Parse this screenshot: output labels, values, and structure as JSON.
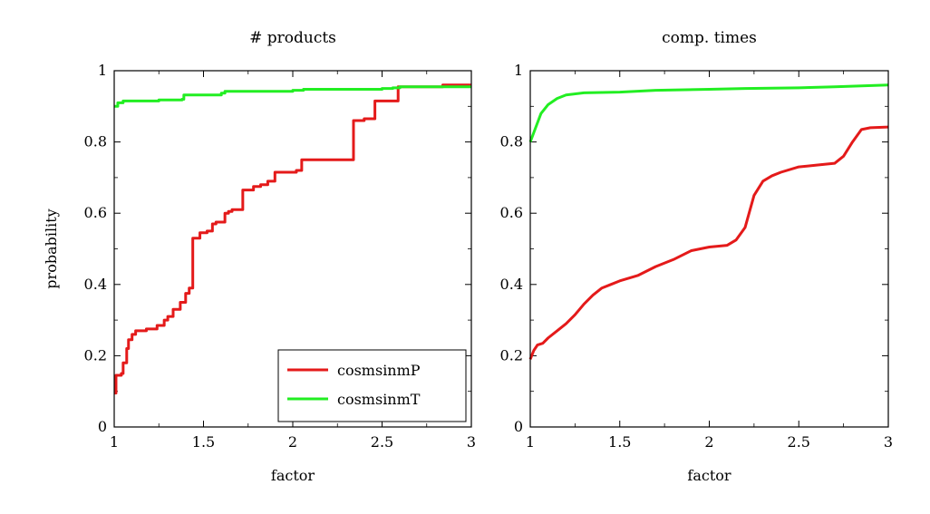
{
  "chart_data": [
    {
      "type": "line",
      "title": "# products",
      "xlabel": "factor",
      "ylabel": "probability",
      "xlim": [
        1,
        3
      ],
      "ylim": [
        0,
        1
      ],
      "xticks": [
        "1",
        "1.5",
        "2",
        "2.5",
        "3"
      ],
      "yticks": [
        "0",
        "0.2",
        "0.4",
        "0.6",
        "0.8",
        "1"
      ],
      "legend": {
        "position": "bottom-right",
        "show": true
      },
      "series": [
        {
          "name": "cosmsinmP",
          "color": "#e41a1a",
          "step": true,
          "points": [
            [
              1.0,
              0.095
            ],
            [
              1.01,
              0.145
            ],
            [
              1.04,
              0.15
            ],
            [
              1.05,
              0.18
            ],
            [
              1.07,
              0.22
            ],
            [
              1.08,
              0.245
            ],
            [
              1.1,
              0.26
            ],
            [
              1.12,
              0.27
            ],
            [
              1.18,
              0.275
            ],
            [
              1.24,
              0.285
            ],
            [
              1.28,
              0.3
            ],
            [
              1.3,
              0.31
            ],
            [
              1.33,
              0.33
            ],
            [
              1.37,
              0.35
            ],
            [
              1.4,
              0.375
            ],
            [
              1.42,
              0.39
            ],
            [
              1.44,
              0.395
            ],
            [
              1.44,
              0.53
            ],
            [
              1.48,
              0.545
            ],
            [
              1.52,
              0.55
            ],
            [
              1.55,
              0.57
            ],
            [
              1.57,
              0.575
            ],
            [
              1.62,
              0.6
            ],
            [
              1.64,
              0.605
            ],
            [
              1.66,
              0.61
            ],
            [
              1.72,
              0.665
            ],
            [
              1.74,
              0.665
            ],
            [
              1.78,
              0.675
            ],
            [
              1.82,
              0.68
            ],
            [
              1.86,
              0.69
            ],
            [
              1.9,
              0.715
            ],
            [
              2.0,
              0.715
            ],
            [
              2.02,
              0.72
            ],
            [
              2.05,
              0.75
            ],
            [
              2.34,
              0.75
            ],
            [
              2.34,
              0.86
            ],
            [
              2.4,
              0.865
            ],
            [
              2.46,
              0.87
            ],
            [
              2.46,
              0.915
            ],
            [
              2.59,
              0.915
            ],
            [
              2.59,
              0.955
            ],
            [
              2.84,
              0.955
            ],
            [
              2.84,
              0.96
            ],
            [
              3.0,
              0.96
            ]
          ]
        },
        {
          "name": "cosmsinmT",
          "color": "#22ee22",
          "step": true,
          "points": [
            [
              1.0,
              0.9
            ],
            [
              1.02,
              0.91
            ],
            [
              1.05,
              0.915
            ],
            [
              1.1,
              0.915
            ],
            [
              1.25,
              0.918
            ],
            [
              1.38,
              0.92
            ],
            [
              1.39,
              0.932
            ],
            [
              1.6,
              0.937
            ],
            [
              1.62,
              0.942
            ],
            [
              2.0,
              0.945
            ],
            [
              2.06,
              0.948
            ],
            [
              2.5,
              0.95
            ],
            [
              2.56,
              0.952
            ],
            [
              2.6,
              0.955
            ],
            [
              3.0,
              0.955
            ]
          ]
        }
      ]
    },
    {
      "type": "line",
      "title": "comp. times",
      "xlabel": "factor",
      "ylabel": "",
      "xlim": [
        1,
        3
      ],
      "ylim": [
        0,
        1
      ],
      "xticks": [
        "1",
        "1.5",
        "2",
        "2.5",
        "3"
      ],
      "yticks": [
        "0",
        "0.2",
        "0.4",
        "0.6",
        "0.8",
        "1"
      ],
      "legend": {
        "show": false
      },
      "series": [
        {
          "name": "cosmsinmP",
          "color": "#e41a1a",
          "step": false,
          "points": [
            [
              1.0,
              0.19
            ],
            [
              1.02,
              0.215
            ],
            [
              1.04,
              0.23
            ],
            [
              1.07,
              0.235
            ],
            [
              1.1,
              0.25
            ],
            [
              1.15,
              0.27
            ],
            [
              1.2,
              0.29
            ],
            [
              1.25,
              0.315
            ],
            [
              1.3,
              0.345
            ],
            [
              1.35,
              0.37
            ],
            [
              1.4,
              0.39
            ],
            [
              1.45,
              0.4
            ],
            [
              1.5,
              0.41
            ],
            [
              1.6,
              0.425
            ],
            [
              1.7,
              0.45
            ],
            [
              1.8,
              0.47
            ],
            [
              1.9,
              0.495
            ],
            [
              2.0,
              0.505
            ],
            [
              2.1,
              0.51
            ],
            [
              2.15,
              0.525
            ],
            [
              2.2,
              0.56
            ],
            [
              2.25,
              0.65
            ],
            [
              2.3,
              0.69
            ],
            [
              2.35,
              0.705
            ],
            [
              2.4,
              0.715
            ],
            [
              2.5,
              0.73
            ],
            [
              2.6,
              0.735
            ],
            [
              2.7,
              0.74
            ],
            [
              2.75,
              0.76
            ],
            [
              2.8,
              0.8
            ],
            [
              2.85,
              0.835
            ],
            [
              2.9,
              0.84
            ],
            [
              3.0,
              0.842
            ]
          ]
        },
        {
          "name": "cosmsinmT",
          "color": "#22ee22",
          "step": false,
          "points": [
            [
              1.0,
              0.8
            ],
            [
              1.03,
              0.84
            ],
            [
              1.06,
              0.88
            ],
            [
              1.1,
              0.905
            ],
            [
              1.15,
              0.922
            ],
            [
              1.2,
              0.932
            ],
            [
              1.3,
              0.938
            ],
            [
              1.5,
              0.94
            ],
            [
              1.7,
              0.945
            ],
            [
              2.0,
              0.948
            ],
            [
              2.2,
              0.95
            ],
            [
              2.5,
              0.952
            ],
            [
              2.7,
              0.955
            ],
            [
              3.0,
              0.96
            ]
          ]
        }
      ]
    }
  ]
}
